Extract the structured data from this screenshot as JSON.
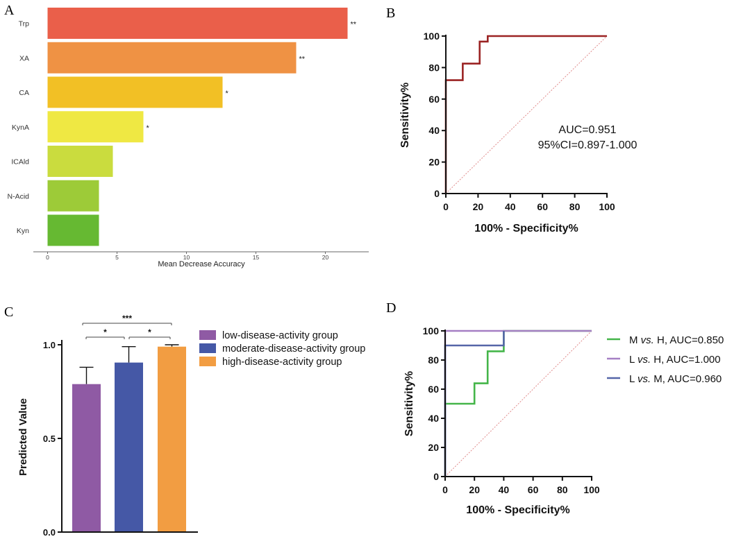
{
  "figure": {
    "panels": [
      "A",
      "B",
      "C",
      "D"
    ]
  },
  "chart_data": [
    {
      "id": "A",
      "type": "bar",
      "orientation": "horizontal",
      "categories": [
        "Trp",
        "XA",
        "CA",
        "KynA",
        "ICAld",
        "N-Acid",
        "Kyn"
      ],
      "values": [
        21.6,
        17.9,
        12.6,
        6.9,
        4.7,
        3.7,
        3.7
      ],
      "significance": [
        "**",
        "**",
        "*",
        "*",
        "",
        "",
        ""
      ],
      "colors": [
        "#ea5f4a",
        "#ef9244",
        "#f2c025",
        "#efe843",
        "#cadc3e",
        "#9dcb38",
        "#66b932"
      ],
      "xlabel": "Mean Decrease Accuracy",
      "xticks": [
        0,
        5,
        10,
        15,
        20
      ],
      "xlim": [
        0,
        23
      ]
    },
    {
      "id": "B",
      "type": "line",
      "subtype": "roc",
      "series": [
        {
          "name": "ROC",
          "color": "#9b2323",
          "x": [
            0,
            0,
            10.5,
            10.5,
            21,
            21,
            26,
            26,
            100
          ],
          "y": [
            0,
            72,
            72,
            82.5,
            82.5,
            96.5,
            96.5,
            100,
            100
          ]
        }
      ],
      "reference_line": true,
      "xlabel": "100% - Specificity%",
      "ylabel": "Sensitivity%",
      "xticks": [
        0,
        20,
        40,
        60,
        80,
        100
      ],
      "yticks": [
        0,
        20,
        40,
        60,
        80,
        100
      ],
      "xlim": [
        0,
        100
      ],
      "ylim": [
        0,
        100
      ],
      "annotations": [
        "AUC=0.951",
        "95%CI=0.897-1.000"
      ]
    },
    {
      "id": "C",
      "type": "bar",
      "categories": [
        "low-disease-activity group",
        "moderate-disease-activity group",
        "high-disease-activity group"
      ],
      "values": [
        0.79,
        0.905,
        0.99
      ],
      "errors": [
        0.09,
        0.085,
        0.01
      ],
      "colors": [
        "#8f5aa4",
        "#4558a6",
        "#f29d42"
      ],
      "ylabel": "Predicted Value",
      "yticks": [
        "0.0",
        "0.5",
        "1.0"
      ],
      "ylim": [
        0,
        1.04
      ],
      "significance": [
        {
          "from": 0,
          "to": 2,
          "label": "***"
        },
        {
          "from": 0,
          "to": 1,
          "label": "*"
        },
        {
          "from": 1,
          "to": 2,
          "label": "*"
        }
      ]
    },
    {
      "id": "D",
      "type": "line",
      "subtype": "roc",
      "series": [
        {
          "name": "M vs. H, AUC=0.850",
          "label_parts": [
            "M ",
            "vs.",
            " H, AUC=0.850"
          ],
          "color": "#44b549",
          "x": [
            0,
            0,
            20,
            20,
            29,
            29,
            40,
            40,
            100
          ],
          "y": [
            0,
            50,
            50,
            64,
            64,
            86,
            86,
            100,
            100
          ]
        },
        {
          "name": "L vs. H, AUC=1.000",
          "label_parts": [
            "L ",
            "vs.",
            " H, AUC=1.000"
          ],
          "color": "#a57fc4",
          "x": [
            0,
            0,
            100
          ],
          "y": [
            0,
            100,
            100
          ]
        },
        {
          "name": "L vs. M, AUC=0.960",
          "label_parts": [
            "L ",
            "vs.",
            " M, AUC=0.960"
          ],
          "color": "#5565a8",
          "x": [
            0,
            0,
            40,
            40
          ],
          "y": [
            0,
            90,
            90,
            100
          ]
        }
      ],
      "reference_line": true,
      "xlabel": "100% - Specificity%",
      "ylabel": "Sensitivity%",
      "xticks": [
        0,
        20,
        40,
        60,
        80,
        100
      ],
      "yticks": [
        0,
        20,
        40,
        60,
        80,
        100
      ],
      "xlim": [
        0,
        100
      ],
      "ylim": [
        0,
        100
      ]
    }
  ]
}
